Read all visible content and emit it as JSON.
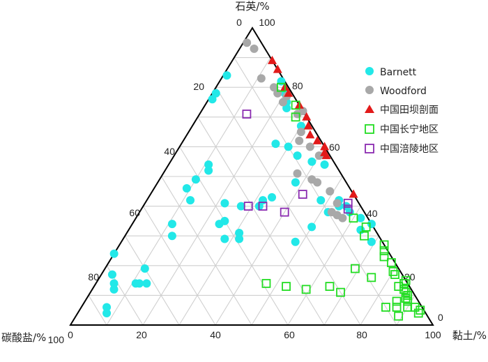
{
  "chart_data": {
    "type": "scatter",
    "subtype": "ternary",
    "axes": {
      "top": "石英/%",
      "left": "碳酸盐/%",
      "right": "黏土/%"
    },
    "ticks": {
      "top_vertex": [
        "0",
        "100"
      ],
      "left_side": [
        "20",
        "40",
        "60",
        "80"
      ],
      "left_corner": "100",
      "right_side": [
        "80",
        "60",
        "40",
        "20"
      ],
      "right_corner": "0",
      "bottom": [
        "0",
        "20",
        "40",
        "60",
        "80",
        "100"
      ]
    },
    "grid": true,
    "grid_step": 10,
    "legend_position": "right",
    "value_fields": [
      "quartz",
      "carbonate",
      "clay"
    ],
    "series": [
      {
        "name": "Barnett",
        "marker": "circle-filled",
        "color": "#22e8e8",
        "points": [
          [
            24,
            76,
            0
          ],
          [
            17,
            80,
            3
          ],
          [
            14,
            81,
            5
          ],
          [
            12,
            82,
            6
          ],
          [
            6,
            87,
            7
          ],
          [
            4,
            88,
            8
          ],
          [
            14,
            75,
            11
          ],
          [
            19,
            70,
            11
          ],
          [
            14,
            74,
            12
          ],
          [
            14,
            72,
            14
          ],
          [
            34,
            55,
            11
          ],
          [
            30,
            57,
            13
          ],
          [
            46,
            45,
            9
          ],
          [
            42,
            46,
            12
          ],
          [
            49,
            41,
            10
          ],
          [
            54,
            35,
            11
          ],
          [
            52,
            36,
            12
          ],
          [
            76,
            23,
            1
          ],
          [
            78,
            21,
            1
          ],
          [
            84,
            15,
            1
          ],
          [
            41,
            37,
            22
          ],
          [
            34,
            42,
            24
          ],
          [
            35,
            40,
            25
          ],
          [
            29,
            43,
            28
          ],
          [
            40,
            33,
            27
          ],
          [
            31,
            38,
            31
          ],
          [
            29,
            39,
            32
          ],
          [
            40,
            28,
            32
          ],
          [
            42,
            26,
            32
          ],
          [
            43,
            23,
            34
          ],
          [
            28,
            24,
            48
          ],
          [
            33,
            17,
            50
          ],
          [
            38,
            10,
            52
          ],
          [
            61,
            13,
            26
          ],
          [
            60,
            10,
            30
          ],
          [
            57,
            9,
            34
          ],
          [
            55,
            6,
            39
          ],
          [
            54,
            3,
            43
          ],
          [
            48,
            14,
            38
          ],
          [
            42,
            10,
            48
          ],
          [
            42,
            5,
            53
          ],
          [
            40,
            6,
            54
          ],
          [
            40,
            4,
            56
          ],
          [
            38,
            4,
            58
          ],
          [
            36,
            2,
            62
          ],
          [
            34,
            0,
            66
          ],
          [
            32,
            4,
            64
          ],
          [
            28,
            3,
            69
          ],
          [
            82,
            1,
            17
          ],
          [
            78,
            2,
            20
          ],
          [
            75,
            3,
            22
          ],
          [
            73,
            4,
            23
          ],
          [
            67,
            3,
            30
          ]
        ]
      },
      {
        "name": "Woodford",
        "marker": "circle-filled",
        "color": "#a8a8a8",
        "points": [
          [
            95,
            4,
            1
          ],
          [
            93,
            3,
            4
          ],
          [
            83,
            6,
            11
          ],
          [
            80,
            4,
            16
          ],
          [
            78,
            4,
            18
          ],
          [
            77,
            2,
            21
          ],
          [
            75,
            4,
            21
          ],
          [
            72,
            0,
            28
          ],
          [
            71,
            2,
            27
          ],
          [
            65,
            4,
            31
          ],
          [
            62,
            6,
            32
          ],
          [
            60,
            4,
            36
          ],
          [
            57,
            3,
            40
          ],
          [
            51,
            12,
            37
          ],
          [
            49,
            9,
            42
          ],
          [
            48,
            8,
            44
          ],
          [
            41,
            6,
            53
          ],
          [
            37,
            8,
            55
          ],
          [
            36,
            7,
            57
          ],
          [
            38,
            9,
            53
          ],
          [
            45,
            6,
            49
          ]
        ]
      },
      {
        "name": "中国田坝剖面",
        "marker": "triangle-filled",
        "color": "#e21a1a",
        "points": [
          [
            89,
            0,
            11
          ],
          [
            86,
            0,
            14
          ],
          [
            80,
            1,
            19
          ],
          [
            78,
            1,
            21
          ],
          [
            74,
            0,
            26
          ],
          [
            70,
            0,
            30
          ],
          [
            67,
            1,
            32
          ],
          [
            64,
            2,
            34
          ],
          [
            62,
            1,
            37
          ],
          [
            60,
            0,
            40
          ],
          [
            58,
            1,
            41
          ],
          [
            57,
            1,
            42
          ],
          [
            44,
            0,
            56
          ]
        ]
      },
      {
        "name": "中国长宁地区",
        "marker": "square-open",
        "color": "#22dd22",
        "points": [
          [
            80,
            2,
            18
          ],
          [
            74,
            1,
            25
          ],
          [
            70,
            3,
            27
          ],
          [
            36,
            4,
            60
          ],
          [
            33,
            2,
            65
          ],
          [
            30,
            4,
            66
          ],
          [
            27,
            0,
            73
          ],
          [
            25,
            1,
            74
          ],
          [
            23,
            2,
            75
          ],
          [
            21,
            1,
            78
          ],
          [
            18,
            2,
            80
          ],
          [
            17,
            2,
            81
          ],
          [
            15,
            0,
            85
          ],
          [
            14,
            1,
            85
          ],
          [
            13,
            3,
            84
          ],
          [
            12,
            2,
            86
          ],
          [
            11,
            2,
            87
          ],
          [
            10,
            2,
            88
          ],
          [
            9,
            3,
            88
          ],
          [
            8,
            6,
            86
          ],
          [
            8,
            3,
            89
          ],
          [
            6,
            10,
            84
          ],
          [
            6,
            7,
            87
          ],
          [
            6,
            4,
            90
          ],
          [
            6,
            2,
            92
          ],
          [
            5,
            1,
            94
          ],
          [
            4,
            2,
            94
          ],
          [
            3,
            8,
            89
          ],
          [
            19,
            12,
            69
          ],
          [
            16,
            9,
            75
          ],
          [
            14,
            39,
            47
          ],
          [
            13,
            34,
            53
          ],
          [
            13,
            22,
            65
          ],
          [
            12,
            29,
            59
          ],
          [
            11,
            20,
            69
          ]
        ]
      },
      {
        "name": "中国涪陵地区",
        "marker": "square-open",
        "color": "#8a2ab0",
        "points": [
          [
            71,
            16,
            13
          ],
          [
            40,
            31,
            29
          ],
          [
            40,
            27,
            33
          ],
          [
            38,
            22,
            40
          ],
          [
            44,
            14,
            42
          ],
          [
            39,
            4,
            57
          ],
          [
            41,
            3,
            56
          ]
        ]
      }
    ]
  }
}
